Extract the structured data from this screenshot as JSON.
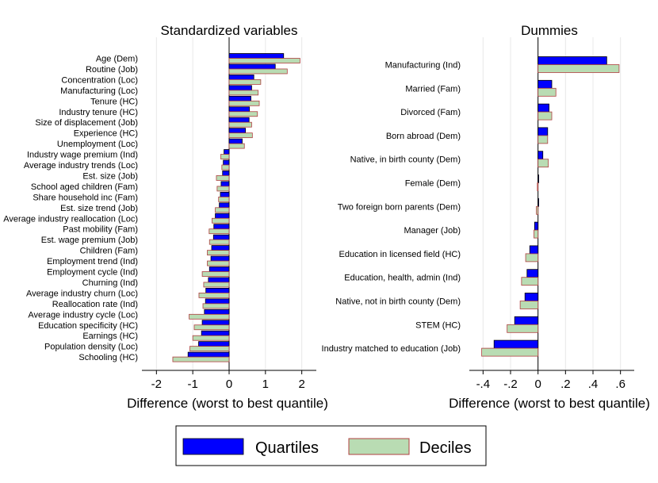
{
  "chart_data": [
    {
      "type": "bar",
      "orientation": "horizontal",
      "title": "Standardized variables",
      "xlabel": "Difference (worst to best quantile)",
      "xlim": [
        -2.4,
        2.4
      ],
      "xticks": [
        -2,
        -1,
        0,
        1,
        2
      ],
      "xtick_labels": [
        "-2",
        "-1",
        "0",
        "1",
        "2"
      ],
      "grid": "vertical",
      "categories": [
        "Age (Dem)",
        "Routine (Job)",
        "Concentration (Loc)",
        "Manufacturing (Loc)",
        "Tenure (HC)",
        "Industry tenure (HC)",
        "Size of displacement (Job)",
        "Experience (HC)",
        "Unemployment (Loc)",
        "Industry wage premium (Ind)",
        "Average industry trends (Loc)",
        "Est. size (Job)",
        "School aged children (Fam)",
        "Share household inc (Fam)",
        "Est. size trend (Job)",
        "Average industry reallocation (Loc)",
        "Past mobility (Fam)",
        "Est. wage premium (Job)",
        "Children (Fam)",
        "Employment trend (Ind)",
        "Employment cycle (Ind)",
        "Churning (Ind)",
        "Average industry churn (Loc)",
        "Reallocation rate (Ind)",
        "Average industry cycle (Loc)",
        "Education specificity (HC)",
        "Earnings (HC)",
        "Population density (Loc)",
        "Schooling (HC)"
      ],
      "series": [
        {
          "name": "Quartiles",
          "color": "#0000ff",
          "values": [
            1.5,
            1.27,
            0.68,
            0.62,
            0.6,
            0.56,
            0.55,
            0.45,
            0.36,
            -0.14,
            -0.16,
            -0.18,
            -0.22,
            -0.24,
            -0.27,
            -0.38,
            -0.42,
            -0.43,
            -0.48,
            -0.5,
            -0.54,
            -0.57,
            -0.64,
            -0.65,
            -0.68,
            -0.74,
            -0.76,
            -0.84,
            -1.13
          ]
        },
        {
          "name": "Deciles",
          "color": "#b9dcb3",
          "values": [
            1.95,
            1.6,
            0.87,
            0.8,
            0.83,
            0.78,
            0.62,
            0.64,
            0.42,
            -0.23,
            -0.2,
            -0.35,
            -0.33,
            -0.29,
            -0.38,
            -0.47,
            -0.55,
            -0.54,
            -0.6,
            -0.6,
            -0.74,
            -0.7,
            -0.83,
            -0.72,
            -1.1,
            -0.96,
            -1.0,
            -1.08,
            -1.55
          ]
        }
      ]
    },
    {
      "type": "bar",
      "orientation": "horizontal",
      "title": "Dummies",
      "xlabel": "Difference (worst to best quantile)",
      "xlim": [
        -0.5,
        0.7
      ],
      "xticks": [
        -0.4,
        -0.2,
        0,
        0.2,
        0.4,
        0.6
      ],
      "xtick_labels": [
        "-.4",
        "-.2",
        "0",
        ".2",
        ".4",
        ".6"
      ],
      "grid": "vertical",
      "categories": [
        "Manufacturing (Ind)",
        "Married (Fam)",
        "Divorced (Fam)",
        "Born abroad (Dem)",
        "Native, in birth county (Dem)",
        "Female (Dem)",
        "Two foreign born parents (Dem)",
        "Manager (Job)",
        "Education in licensed field (HC)",
        "Education, health, admin (Ind)",
        "Native, not in birth county (Dem)",
        "STEM (HC)",
        "Industry matched to education (Job)"
      ],
      "series": [
        {
          "name": "Quartiles",
          "color": "#0000ff",
          "values": [
            0.5,
            0.1,
            0.08,
            0.07,
            0.035,
            0.005,
            0.005,
            -0.025,
            -0.06,
            -0.08,
            -0.095,
            -0.17,
            -0.32
          ]
        },
        {
          "name": "Deciles",
          "color": "#b9dcb3",
          "values": [
            0.59,
            0.13,
            0.1,
            0.07,
            0.075,
            -0.005,
            -0.012,
            -0.03,
            -0.09,
            -0.12,
            -0.13,
            -0.225,
            -0.41
          ]
        }
      ]
    }
  ],
  "legend": {
    "placement": "bottom-center",
    "items": [
      {
        "label": "Quartiles",
        "color": "#0000ff"
      },
      {
        "label": "Deciles",
        "color": "#b9dcb3"
      }
    ]
  }
}
